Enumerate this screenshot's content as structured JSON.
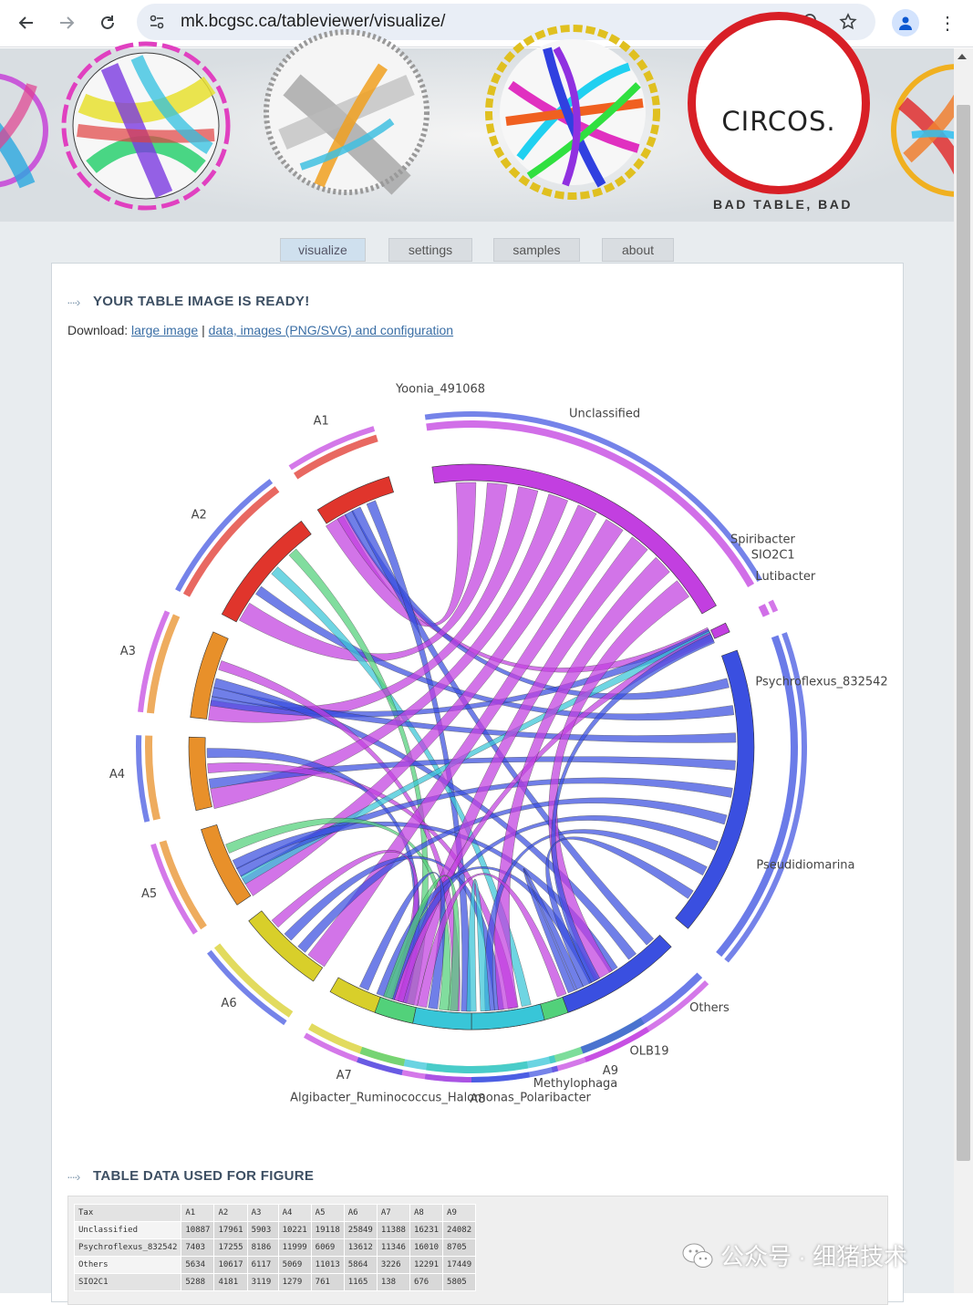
{
  "browser": {
    "url": "mk.bcgsc.ca/tableviewer/visualize/"
  },
  "banner": {
    "logo_text": "CIRCOS.",
    "caption": "BAD TABLE, BAD"
  },
  "tabs": [
    {
      "label": "visualize",
      "active": true
    },
    {
      "label": "settings",
      "active": false
    },
    {
      "label": "samples",
      "active": false
    },
    {
      "label": "about",
      "active": false
    }
  ],
  "result": {
    "title": "YOUR TABLE IMAGE IS READY!",
    "download_prefix": "Download:",
    "link_large": "large image",
    "separator": "|",
    "link_data": "data, images (PNG/SVG) and configuration"
  },
  "figure": {
    "labels": [
      "A1",
      "A2",
      "A3",
      "A4",
      "A5",
      "A6",
      "A7",
      "A8",
      "A9",
      "Yoonia_491068",
      "Unclassified",
      "Spiribacter",
      "SIO2C1",
      "Lutibacter",
      "Psychroflexus_832542",
      "Pseudidiomarina",
      "Others",
      "OLB19",
      "Methylophaga",
      "Algibacter_Ruminococcus_Halomonas_Polaribacter"
    ],
    "colors": {
      "magenta": "#c23fe0",
      "blue": "#3a4fe0",
      "cyan": "#38c6d8",
      "green": "#52d17a",
      "orange": "#e8902a",
      "red": "#e0352c",
      "yellow": "#d8cf2a"
    }
  },
  "table_section": {
    "title": "TABLE DATA USED FOR FIGURE",
    "headers": [
      "Tax",
      "A1",
      "A2",
      "A3",
      "A4",
      "A5",
      "A6",
      "A7",
      "A8",
      "A9"
    ],
    "rows": [
      [
        "Unclassified",
        "10887",
        "17961",
        "5903",
        "10221",
        "19118",
        "25849",
        "11388",
        "16231",
        "24082"
      ],
      [
        "Psychroflexus_832542",
        "7403",
        "17255",
        "8186",
        "11999",
        "6069",
        "13612",
        "11346",
        "16010",
        "8705"
      ],
      [
        "Others",
        "5634",
        "10617",
        "6117",
        "5069",
        "11013",
        "5864",
        "3226",
        "12291",
        "17449"
      ],
      [
        "SIO2C1",
        "5288",
        "4181",
        "3119",
        "1279",
        "761",
        "1165",
        "138",
        "676",
        "5805"
      ]
    ]
  },
  "watermark": {
    "text": "公众号 · 细猪技术"
  }
}
